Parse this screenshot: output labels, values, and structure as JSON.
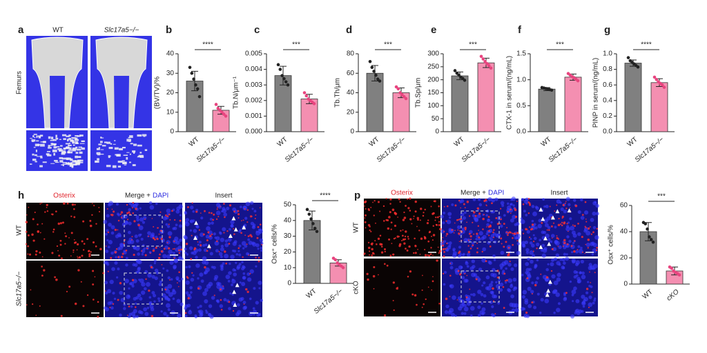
{
  "panels": {
    "a": {
      "label": "a",
      "columns": [
        "WT",
        "Slc17a5−/−"
      ],
      "row_label": "Femurs"
    },
    "h": {
      "label": "h",
      "stain": "Osterix",
      "merge": "Merge +",
      "dapi": "DAPI",
      "insert": "Insert",
      "rows": [
        "WT",
        "Slc17a5−/−"
      ]
    },
    "p": {
      "label": "p",
      "stain": "Osterix",
      "merge": "Merge +",
      "dapi": "DAPI",
      "insert": "Insert",
      "rows": [
        "WT",
        "cKO"
      ]
    }
  },
  "chart_data": [
    {
      "type": "bar",
      "panel": "b",
      "ylabel": "(BV/TV)/%",
      "categories": [
        "WT",
        "Slc17a5−/−"
      ],
      "values": [
        26,
        11
      ],
      "errors": [
        5,
        2
      ],
      "points": [
        [
          33,
          30,
          27,
          24,
          22,
          18
        ],
        [
          14,
          12,
          11,
          10,
          9,
          8
        ]
      ],
      "colors": [
        "#808080",
        "#f48fb1"
      ],
      "significance": "****",
      "ylim": [
        0,
        40
      ],
      "yticks": [
        0,
        10,
        20,
        30,
        40
      ]
    },
    {
      "type": "bar",
      "panel": "c",
      "ylabel": "Tb.N/μm⁻¹",
      "categories": [
        "WT",
        "Slc17a5−/−"
      ],
      "values": [
        0.0036,
        0.0021
      ],
      "errors": [
        0.0006,
        0.0003
      ],
      "points": [
        [
          0.0043,
          0.004,
          0.0036,
          0.0034,
          0.0032,
          0.003
        ],
        [
          0.0025,
          0.0023,
          0.0021,
          0.002,
          0.0019,
          0.0018
        ]
      ],
      "colors": [
        "#808080",
        "#f48fb1"
      ],
      "significance": "***",
      "ylim": [
        0,
        0.005
      ],
      "yticks": [
        {
          "value": 0,
          "label": "0.000"
        },
        {
          "value": 0.001,
          "label": "0.001"
        },
        {
          "value": 0.002,
          "label": "0.002"
        },
        {
          "value": 0.003,
          "label": "0.003"
        },
        {
          "value": 0.004,
          "label": "0.004"
        },
        {
          "value": 0.005,
          "label": "0.005"
        }
      ]
    },
    {
      "type": "bar",
      "panel": "d",
      "ylabel": "Tb.Th/μm",
      "categories": [
        "WT",
        "Slc17a5−/−"
      ],
      "values": [
        60,
        40
      ],
      "errors": [
        8,
        5
      ],
      "points": [
        [
          72,
          66,
          62,
          58,
          54,
          52
        ],
        [
          46,
          44,
          40,
          38,
          36,
          34
        ]
      ],
      "colors": [
        "#808080",
        "#f48fb1"
      ],
      "significance": "***",
      "ylim": [
        0,
        80
      ],
      "yticks": [
        0,
        20,
        40,
        60,
        80
      ]
    },
    {
      "type": "bar",
      "panel": "e",
      "ylabel": "Tb.Sp/μm",
      "categories": [
        "WT",
        "Slc17a5−/−"
      ],
      "values": [
        215,
        265
      ],
      "errors": [
        15,
        18
      ],
      "points": [
        [
          235,
          225,
          218,
          210,
          205,
          198
        ],
        [
          290,
          280,
          270,
          262,
          255,
          245
        ]
      ],
      "colors": [
        "#808080",
        "#f48fb1"
      ],
      "significance": "***",
      "ylim": [
        0,
        300
      ],
      "yticks": [
        0,
        50,
        100,
        150,
        200,
        250,
        300
      ]
    },
    {
      "type": "bar",
      "panel": "f",
      "ylabel": "CTX-1 in serum/(ng/mL)",
      "categories": [
        "WT",
        "Slc17a5−/−"
      ],
      "values": [
        0.82,
        1.05
      ],
      "errors": [
        0.03,
        0.06
      ],
      "points": [
        [
          0.85,
          0.84,
          0.83,
          0.82,
          0.81,
          0.8
        ],
        [
          1.12,
          1.09,
          1.06,
          1.04,
          1.01,
          0.98
        ]
      ],
      "colors": [
        "#808080",
        "#f48fb1"
      ],
      "significance": "***",
      "ylim": [
        0,
        1.5
      ],
      "yticks": [
        {
          "value": 0,
          "label": "0.0"
        },
        {
          "value": 0.5,
          "label": "0.5"
        },
        {
          "value": 1,
          "label": "1.0"
        },
        {
          "value": 1.5,
          "label": "1.5"
        }
      ]
    },
    {
      "type": "bar",
      "panel": "g",
      "ylabel": "PINP in serum/(ng/mL)",
      "categories": [
        "WT",
        "Slc17a5−/−"
      ],
      "values": [
        0.88,
        0.63
      ],
      "errors": [
        0.04,
        0.05
      ],
      "points": [
        [
          0.95,
          0.91,
          0.89,
          0.87,
          0.85,
          0.83
        ],
        [
          0.7,
          0.67,
          0.64,
          0.62,
          0.6,
          0.57
        ]
      ],
      "colors": [
        "#808080",
        "#f48fb1"
      ],
      "significance": "****",
      "ylim": [
        0,
        1.0
      ],
      "yticks": [
        {
          "value": 0,
          "label": "0.0"
        },
        {
          "value": 0.2,
          "label": "0.2"
        },
        {
          "value": 0.4,
          "label": "0.4"
        },
        {
          "value": 0.6,
          "label": "0.6"
        },
        {
          "value": 0.8,
          "label": "0.8"
        },
        {
          "value": 1,
          "label": "1.0"
        }
      ]
    },
    {
      "type": "bar",
      "ylabel": "Osx⁺ cells/%",
      "categories": [
        "WT",
        "Slc17a5−/−"
      ],
      "values": [
        40,
        13
      ],
      "errors": [
        6,
        2
      ],
      "points": [
        [
          47,
          44,
          41,
          38,
          35,
          33
        ],
        [
          16,
          15,
          13,
          12,
          11,
          10
        ]
      ],
      "colors": [
        "#808080",
        "#f48fb1"
      ],
      "significance": "****",
      "ylim": [
        0,
        50
      ],
      "yticks": [
        0,
        10,
        20,
        30,
        40,
        50
      ]
    },
    {
      "type": "bar",
      "ylabel": "Osx⁺ cells/%",
      "categories": [
        "WT",
        "cKO"
      ],
      "values": [
        40,
        10
      ],
      "errors": [
        7,
        3
      ],
      "points": [
        [
          47,
          46,
          42,
          36,
          34,
          32
        ],
        [
          13,
          12,
          10,
          9,
          8,
          7
        ]
      ],
      "colors": [
        "#808080",
        "#f48fb1"
      ],
      "significance": "***",
      "ylim": [
        0,
        60
      ],
      "yticks": [
        0,
        20,
        40,
        60
      ]
    }
  ]
}
